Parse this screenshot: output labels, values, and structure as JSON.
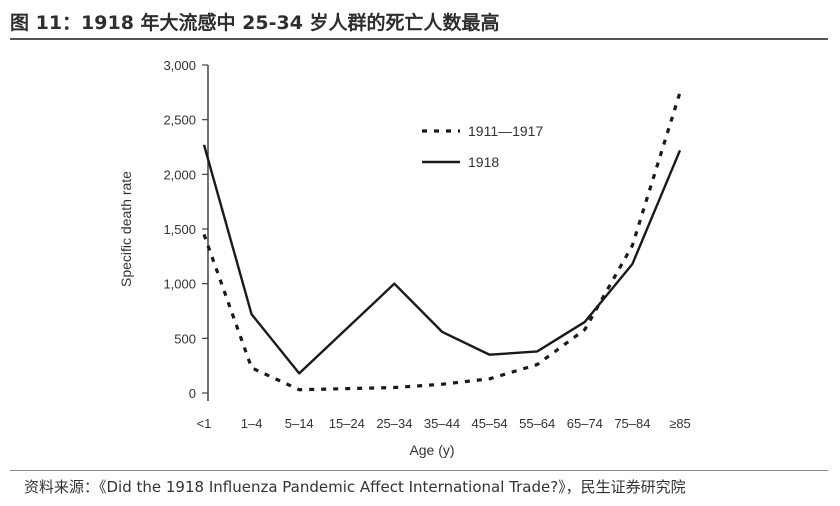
{
  "figure": {
    "title": "图 11：1918 年大流感中 25-34 岁人群的死亡人数最高",
    "source": "资料来源：《Did the 1918 Influenza Pandemic Affect International Trade?》，民生证券研究院"
  },
  "chart_data": {
    "type": "line",
    "xlabel": "Age (y)",
    "ylabel": "Specific death rate",
    "categories": [
      "<1",
      "1–4",
      "5–14",
      "15–24",
      "25–34",
      "35–44",
      "45–54",
      "55–64",
      "65–74",
      "75–84",
      "≥85"
    ],
    "ylim": [
      0,
      3000
    ],
    "yticks": [
      0,
      500,
      1000,
      1500,
      2000,
      2500,
      3000
    ],
    "ytick_labels": [
      "0",
      "500",
      "1,000",
      "1,500",
      "2,000",
      "2,500",
      "3,000"
    ],
    "grid": false,
    "legend_position": "top-center",
    "series": [
      {
        "name": "1911—1917",
        "style": "dotted",
        "color": "#1a1a1a",
        "values": [
          1450,
          230,
          30,
          40,
          50,
          80,
          130,
          260,
          580,
          1350,
          2750
        ]
      },
      {
        "name": "1918",
        "style": "solid",
        "color": "#1a1a1a",
        "values": [
          2270,
          720,
          180,
          590,
          1000,
          560,
          350,
          380,
          650,
          1180,
          2220
        ]
      }
    ]
  }
}
